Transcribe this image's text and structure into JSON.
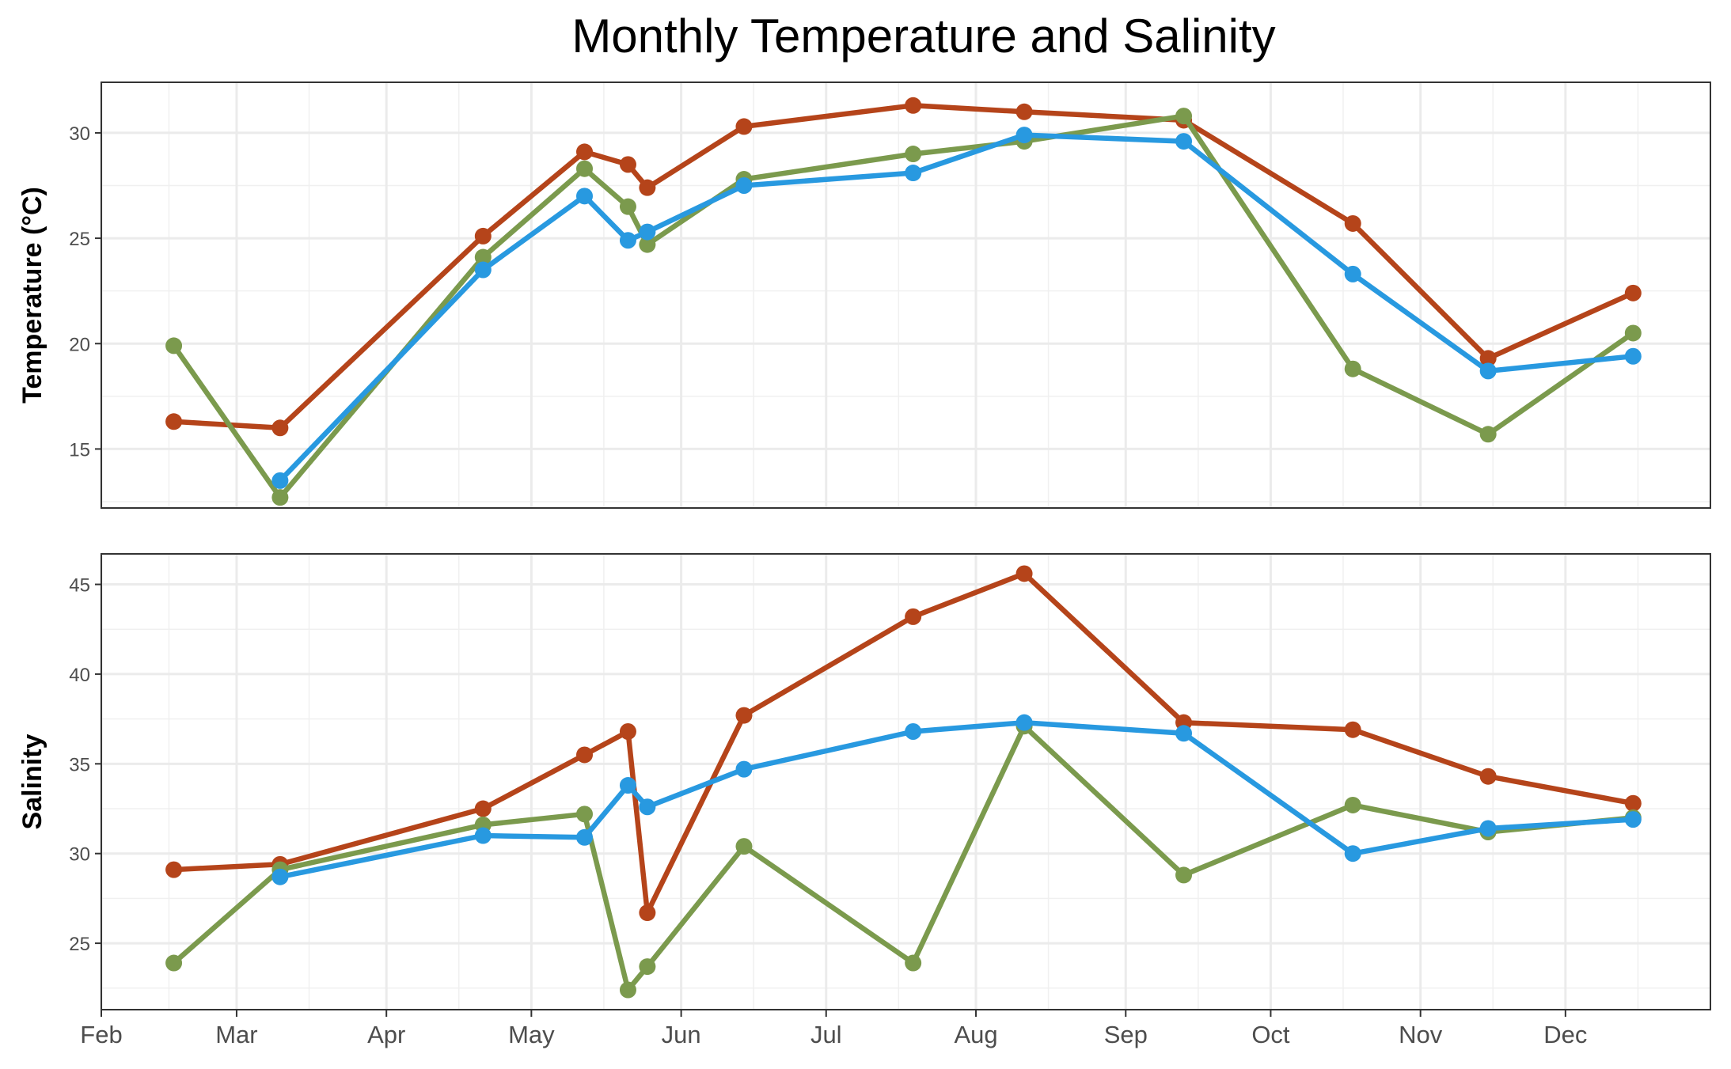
{
  "chart_data": {
    "type": "line",
    "title": "Monthly Temperature and Salinity",
    "x_axis": {
      "ticks": [
        "Feb",
        "Mar",
        "Apr",
        "May",
        "Jun",
        "Jul",
        "Aug",
        "Sep",
        "Oct",
        "Nov",
        "Dec"
      ],
      "xlim": [
        "2023-02-01",
        "2023-12-31"
      ]
    },
    "x": [
      "2023-02-16",
      "2023-03-10",
      "2023-04-21",
      "2023-05-12",
      "2023-05-21",
      "2023-05-25",
      "2023-06-14",
      "2023-07-19",
      "2023-08-11",
      "2023-09-13",
      "2023-10-18",
      "2023-11-15",
      "2023-12-15"
    ],
    "panels": [
      {
        "ylabel": "Temperature (°C)",
        "ylim": [
          12.2,
          32.4
        ],
        "yticks": [
          15,
          20,
          25,
          30
        ],
        "grid": true,
        "series": [
          {
            "color": "#b5441a",
            "values": [
              16.3,
              16.0,
              25.1,
              29.1,
              28.5,
              27.4,
              30.3,
              31.3,
              31.0,
              30.6,
              25.7,
              19.3,
              22.4
            ]
          },
          {
            "color": "#7b9a4d",
            "values": [
              19.9,
              12.7,
              24.1,
              28.3,
              26.5,
              24.7,
              27.8,
              29.0,
              29.6,
              30.8,
              18.8,
              15.7,
              20.5
            ]
          },
          {
            "color": "#2899e0",
            "values": [
              null,
              13.5,
              23.5,
              27.0,
              24.9,
              25.3,
              27.5,
              28.1,
              29.9,
              29.6,
              23.3,
              18.7,
              19.4
            ]
          }
        ]
      },
      {
        "ylabel": "Salinity",
        "ylim": [
          21.3,
          46.7
        ],
        "yticks": [
          25,
          30,
          35,
          40,
          45
        ],
        "grid": true,
        "series": [
          {
            "color": "#b5441a",
            "values": [
              29.1,
              29.4,
              32.5,
              35.5,
              36.8,
              26.7,
              37.7,
              43.2,
              45.6,
              37.3,
              36.9,
              34.3,
              32.8
            ]
          },
          {
            "color": "#7b9a4d",
            "values": [
              23.9,
              29.1,
              31.6,
              32.2,
              22.4,
              23.7,
              30.4,
              23.9,
              37.1,
              28.8,
              32.7,
              31.2,
              32.0
            ]
          },
          {
            "color": "#2899e0",
            "values": [
              null,
              28.7,
              31.0,
              30.9,
              33.8,
              32.6,
              34.7,
              36.8,
              37.3,
              36.7,
              30.0,
              31.4,
              31.9
            ]
          }
        ]
      }
    ]
  }
}
